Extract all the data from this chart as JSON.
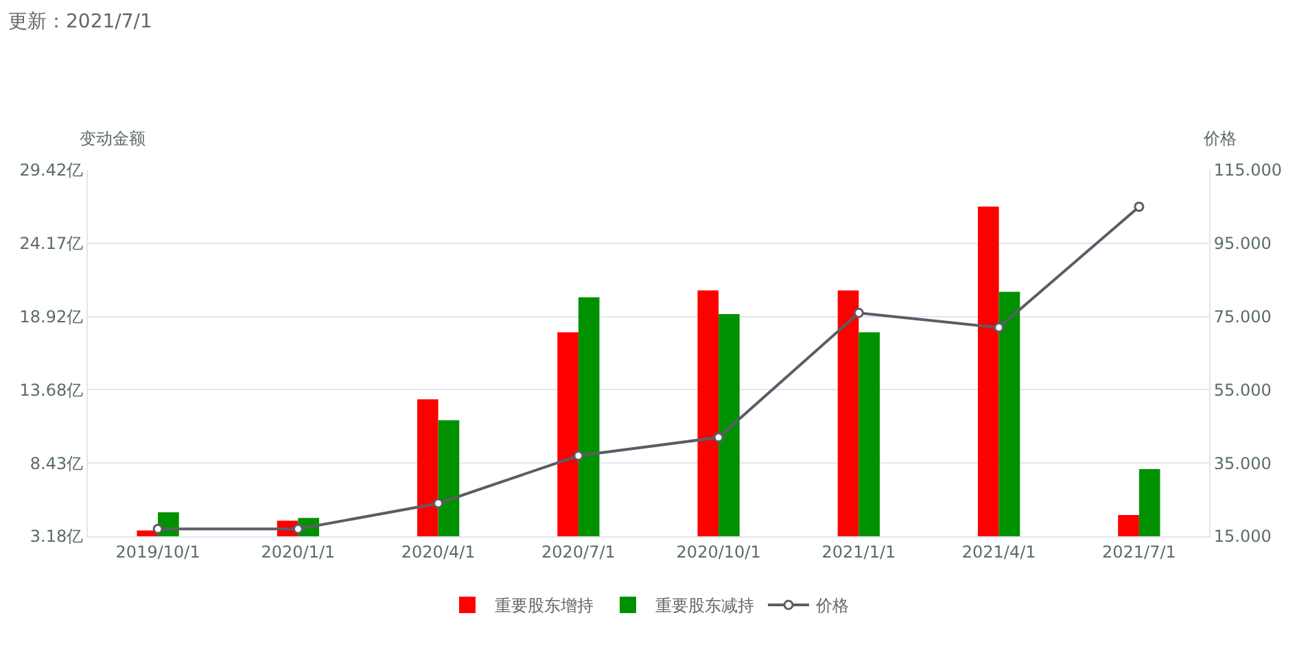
{
  "chart_data": {
    "type": "bar",
    "categories": [
      "2019/10/1",
      "2020/1/1",
      "2020/4/1",
      "2020/7/1",
      "2020/10/1",
      "2021/1/1",
      "2021/4/1",
      "2021/7/1"
    ],
    "series": [
      {
        "name": "重要股东增持",
        "color": "#ff0000",
        "values": [
          3.6,
          4.3,
          13.0,
          17.8,
          20.8,
          20.8,
          26.8,
          4.7
        ]
      },
      {
        "name": "重要股东减持",
        "color": "#009100",
        "values": [
          4.9,
          4.5,
          11.5,
          20.3,
          19.1,
          17.8,
          20.7,
          8.0
        ]
      },
      {
        "name": "价格",
        "type": "line",
        "axis": "y2",
        "color": "#5c5c66",
        "values": [
          17,
          17,
          24,
          37,
          42,
          76,
          72,
          105
        ]
      }
    ],
    "ylabel": "变动金额",
    "y2label": "价格",
    "ylim": [
      3.18,
      29.42
    ],
    "yticks": [
      {
        "value": 3.18,
        "label": "3.18亿"
      },
      {
        "value": 8.43,
        "label": "8.43亿"
      },
      {
        "value": 13.68,
        "label": "13.68亿"
      },
      {
        "value": 18.92,
        "label": "18.92亿"
      },
      {
        "value": 24.17,
        "label": "24.17亿"
      },
      {
        "value": 29.42,
        "label": "29.42亿"
      }
    ],
    "y2lim": [
      15,
      115
    ],
    "y2ticks": [
      {
        "value": 15,
        "label": "15.000"
      },
      {
        "value": 35,
        "label": "35.000"
      },
      {
        "value": 55,
        "label": "55.000"
      },
      {
        "value": 75,
        "label": "75.000"
      },
      {
        "value": 95,
        "label": "95.000"
      },
      {
        "value": 115,
        "label": "115.000"
      }
    ],
    "grid": "y",
    "legend": "bottom",
    "marker": "circle",
    "line_style": "solid",
    "annotations": [
      "更新：2021/7/1"
    ]
  }
}
